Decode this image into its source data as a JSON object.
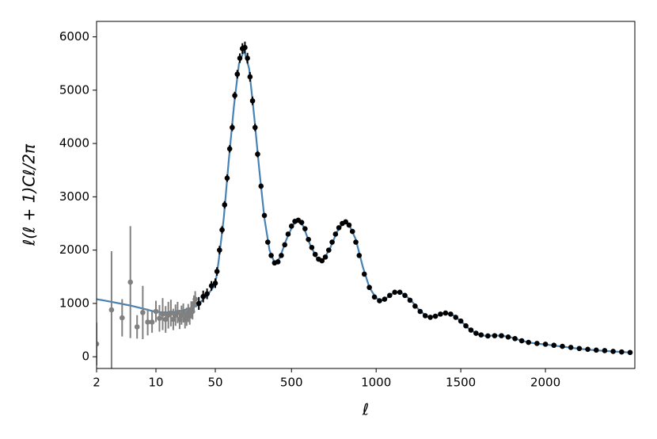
{
  "chart_data": {
    "type": "line",
    "xlabel": "ℓ",
    "ylabel": "ℓ(ℓ + 1)Cℓ/2π",
    "xscale": "log-linear",
    "xswitch": 50,
    "xlim": [
      2,
      2528
    ],
    "ylim": [
      -220,
      6290
    ],
    "xticks": [
      2,
      10,
      50,
      500,
      1000,
      1500,
      2000
    ],
    "yticks": [
      0,
      1000,
      2000,
      3000,
      4000,
      5000,
      6000
    ],
    "series": [
      {
        "type": "line",
        "color": "#4682b4",
        "x": [
          2,
          3,
          5,
          8,
          10,
          15,
          20,
          30,
          40,
          50,
          70,
          100,
          130,
          160,
          190,
          220,
          250,
          280,
          310,
          340,
          370,
          400,
          430,
          470,
          510,
          540,
          570,
          610,
          650,
          690,
          730,
          770,
          810,
          840,
          880,
          920,
          960,
          1000,
          1030,
          1070,
          1110,
          1150,
          1200,
          1250,
          1300,
          1350,
          1400,
          1450,
          1500,
          1550,
          1600,
          1650,
          1700,
          1750,
          1800,
          1850,
          1900,
          1950,
          2000,
          2100,
          2200,
          2300,
          2400,
          2500
        ],
        "values": [
          1080,
          1030,
          960,
          880,
          840,
          830,
          860,
          950,
          1150,
          1350,
          1800,
          2600,
          3700,
          4700,
          5500,
          5750,
          5400,
          4500,
          3500,
          2600,
          2000,
          1760,
          1850,
          2200,
          2480,
          2540,
          2450,
          2100,
          1850,
          1820,
          2050,
          2350,
          2520,
          2480,
          2200,
          1700,
          1300,
          1100,
          1050,
          1120,
          1220,
          1200,
          1080,
          890,
          750,
          760,
          820,
          790,
          670,
          520,
          420,
          390,
          400,
          390,
          360,
          310,
          270,
          245,
          230,
          190,
          150,
          120,
          100,
          80
        ]
      },
      {
        "type": "errorbar",
        "color": "#808080",
        "x": [
          2,
          3,
          4,
          5,
          6,
          7,
          8,
          9,
          10,
          11,
          12,
          13,
          14,
          15,
          16,
          17,
          18,
          19,
          20,
          21,
          22,
          23,
          24,
          25,
          26,
          27,
          28,
          29
        ],
        "values": [
          240,
          880,
          730,
          1400,
          560,
          830,
          650,
          650,
          850,
          720,
          800,
          700,
          780,
          820,
          700,
          780,
          830,
          700,
          780,
          820,
          700,
          750,
          820,
          760,
          880,
          850,
          1000,
          1080
        ],
        "errors": [
          400,
          1100,
          350,
          1050,
          220,
          500,
          250,
          200,
          200,
          250,
          300,
          250,
          250,
          250,
          200,
          200,
          200,
          180,
          180,
          180,
          170,
          170,
          170,
          160,
          160,
          150,
          150,
          150
        ]
      },
      {
        "type": "errorbar",
        "color": "#000000",
        "x": [
          32,
          36,
          40,
          45,
          50,
          60,
          75,
          90,
          105,
          120,
          135,
          150,
          165,
          180,
          195,
          210,
          225,
          240,
          255,
          270,
          285,
          300,
          320,
          340,
          360,
          380,
          400,
          420,
          440,
          460,
          480,
          500,
          520,
          540,
          560,
          580,
          600,
          620,
          640,
          660,
          680,
          700,
          720,
          740,
          760,
          780,
          800,
          820,
          840,
          860,
          880,
          900,
          930,
          960,
          990,
          1020,
          1050,
          1080,
          1110,
          1140,
          1170,
          1200,
          1230,
          1260,
          1290,
          1320,
          1350,
          1380,
          1410,
          1440,
          1470,
          1500,
          1530,
          1560,
          1590,
          1620,
          1660,
          1700,
          1740,
          1780,
          1820,
          1860,
          1900,
          1950,
          2000,
          2050,
          2100,
          2150,
          2200,
          2250,
          2300,
          2350,
          2400,
          2450,
          2500
        ],
        "values": [
          1000,
          1130,
          1180,
          1330,
          1380,
          1600,
          2000,
          2380,
          2850,
          3350,
          3900,
          4300,
          4900,
          5300,
          5600,
          5780,
          5800,
          5600,
          5250,
          4800,
          4300,
          3800,
          3200,
          2650,
          2150,
          1900,
          1760,
          1780,
          1900,
          2100,
          2300,
          2450,
          2540,
          2560,
          2520,
          2400,
          2200,
          2050,
          1920,
          1830,
          1800,
          1870,
          2000,
          2150,
          2300,
          2420,
          2500,
          2530,
          2470,
          2350,
          2150,
          1900,
          1550,
          1300,
          1120,
          1050,
          1080,
          1150,
          1210,
          1210,
          1150,
          1060,
          950,
          850,
          770,
          740,
          760,
          800,
          820,
          800,
          740,
          670,
          580,
          500,
          440,
          410,
          390,
          395,
          395,
          370,
          340,
          300,
          270,
          250,
          235,
          215,
          195,
          175,
          155,
          140,
          125,
          115,
          100,
          90,
          80
        ],
        "errors": [
          120,
          110,
          100,
          90,
          90,
          80,
          80,
          70,
          70,
          70,
          70,
          70,
          70,
          80,
          90,
          100,
          110,
          100,
          90,
          80,
          70,
          60,
          50,
          45,
          40,
          35,
          30,
          30,
          30,
          30,
          30,
          30,
          30,
          30,
          30,
          30,
          30,
          30,
          30,
          30,
          30,
          30,
          30,
          30,
          30,
          30,
          30,
          30,
          30,
          30,
          30,
          30,
          30,
          30,
          30,
          30,
          30,
          30,
          30,
          30,
          30,
          30,
          30,
          30,
          30,
          30,
          30,
          30,
          30,
          30,
          30,
          30,
          30,
          30,
          30,
          30,
          30,
          30,
          30,
          30,
          30,
          30,
          30,
          30,
          30,
          30,
          30,
          30,
          30,
          30,
          30,
          30,
          30,
          30,
          30
        ]
      }
    ]
  }
}
